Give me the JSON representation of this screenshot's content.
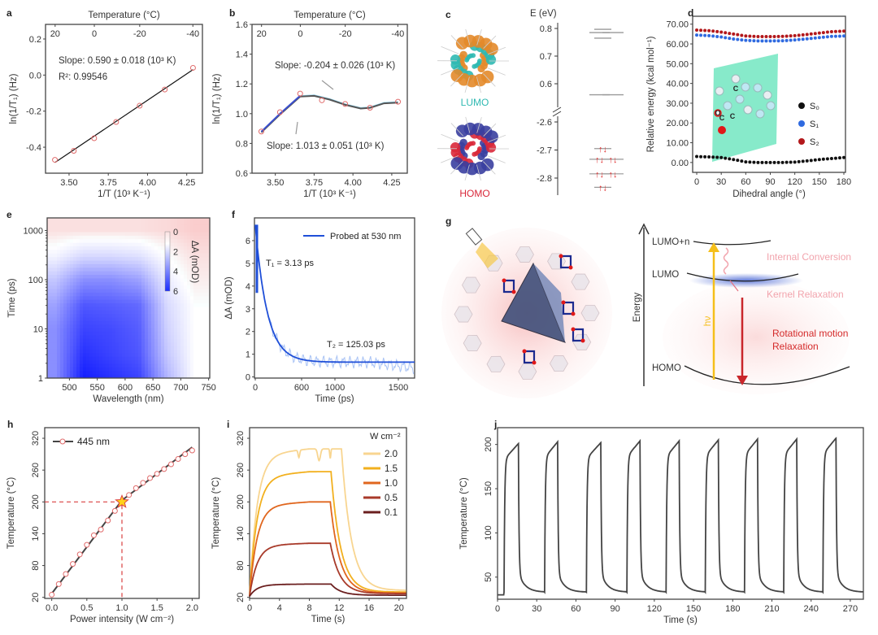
{
  "colors": {
    "red_marker": "#e06a6a",
    "blue_fit": "#1f4fd8",
    "s0": "#111111",
    "s1": "#2f6ae0",
    "s2": "#b3181b",
    "hv": "#f5bf1a",
    "relax": "#c9262b",
    "ic": "#f2a4ad"
  },
  "chart_data": [
    {
      "id": "a",
      "type": "scatter",
      "label": "a",
      "top_axis_label": "Temperature (°C)",
      "top_ticks": [
        "20",
        "0",
        "-20",
        "-40"
      ],
      "xlabel": "1/T (10³ K⁻¹)",
      "ylabel": "ln(1/T₁) (Hz)",
      "xlim": [
        3.35,
        4.35
      ],
      "ylim": [
        -0.544,
        0.281
      ],
      "xticks": [
        "3.50",
        "3.75",
        "4.00",
        "4.25"
      ],
      "yticks": [
        "-0.4",
        "-0.2",
        "0.0",
        "0.2"
      ],
      "x": [
        3.41,
        3.53,
        3.66,
        3.8,
        3.95,
        4.11,
        4.29
      ],
      "y": [
        -0.47,
        -0.42,
        -0.35,
        -0.26,
        -0.17,
        -0.08,
        0.04
      ],
      "fit": {
        "x": [
          3.41,
          4.29
        ],
        "y": [
          -0.485,
          0.03
        ]
      },
      "annotations": [
        "Slope: 0.590 ± 0.018 (10³ K)",
        "R²: 0.99546"
      ]
    },
    {
      "id": "b",
      "type": "scatter",
      "label": "b",
      "top_axis_label": "Temperature (°C)",
      "top_ticks": [
        "20",
        "0",
        "-20",
        "-40"
      ],
      "xlabel": "1/T (10³ K⁻¹)",
      "ylabel": "ln(1/T₁) (Hz)",
      "xlim": [
        3.35,
        4.35
      ],
      "ylim": [
        0.6,
        1.6
      ],
      "xticks": [
        "3.50",
        "3.75",
        "4.00",
        "4.25"
      ],
      "yticks": [
        "0.6",
        "0.8",
        "1.0",
        "1.2",
        "1.4",
        "1.6"
      ],
      "x": [
        3.41,
        3.53,
        3.66,
        3.8,
        3.95,
        4.11,
        4.29
      ],
      "y": [
        0.88,
        1.01,
        1.135,
        1.09,
        1.065,
        1.04,
        1.08
      ],
      "smooth": {
        "x": [
          3.41,
          3.53,
          3.66,
          3.75,
          3.85,
          3.95,
          4.05,
          4.11,
          4.2,
          4.29
        ],
        "y": [
          0.88,
          1.0,
          1.12,
          1.125,
          1.1,
          1.065,
          1.04,
          1.045,
          1.075,
          1.08
        ]
      },
      "annotations": [
        "Slope: -0.204 ± 0.026 (10³ K)",
        "Slope: 1.013 ± 0.051 (10³ K)"
      ]
    },
    {
      "id": "c",
      "type": "diagram",
      "label": "c",
      "axis_label": "E (eV)",
      "upper_ticks": [
        "0.8",
        "0.7",
        "0.6"
      ],
      "lower_ticks": [
        "-2.6",
        "-2.7",
        "-2.8"
      ],
      "lumo_levels": [
        0.797,
        0.785,
        0.785,
        0.765,
        0.56,
        0.56
      ],
      "homo_levels": [
        -2.695,
        -2.733,
        -2.733,
        -2.785,
        -2.785,
        -2.833
      ],
      "orbital_labels": [
        "LUMO",
        "HOMO"
      ],
      "electron_pair": "↑↓"
    },
    {
      "id": "d",
      "type": "scatter",
      "label": "d",
      "xlabel": "Dihedral angle (°)",
      "ylabel": "Relative energy (kcal mol⁻¹)",
      "xlim": [
        -5,
        182
      ],
      "ylim": [
        -5,
        74
      ],
      "xticks": [
        "0",
        "30",
        "60",
        "90",
        "120",
        "150",
        "180"
      ],
      "yticks": [
        "0.00",
        "10.00",
        "20.00",
        "30.00",
        "40.00",
        "50.00",
        "60.00",
        "70.00"
      ],
      "x": [
        0,
        15,
        30,
        45,
        60,
        75,
        90,
        105,
        120,
        135,
        150,
        165,
        180
      ],
      "series": [
        {
          "name": "S₀",
          "color": "#111111",
          "values": [
            3,
            2.8,
            2.5,
            1.5,
            0.3,
            0,
            0,
            0,
            0.2,
            0.8,
            1.5,
            2,
            2.5
          ]
        },
        {
          "name": "S₁",
          "color": "#2f6ae0",
          "values": [
            64.5,
            64.2,
            63.5,
            62.5,
            61.8,
            61.5,
            61.5,
            61.6,
            62,
            62.6,
            63.2,
            63.8,
            64
          ]
        },
        {
          "name": "S₂",
          "color": "#b3181b",
          "values": [
            67,
            66.7,
            66,
            65,
            64,
            63.7,
            63.7,
            63.8,
            64.2,
            64.8,
            65.5,
            66.2,
            66.5
          ]
        }
      ],
      "inset_atoms": [
        "C",
        "C",
        "C",
        "O"
      ],
      "legend": "right"
    },
    {
      "id": "e",
      "type": "heatmap",
      "label": "e",
      "xlabel": "Wavelength (nm)",
      "ylabel": "Time (ps)",
      "xlim": [
        460,
        752
      ],
      "ylim_log": [
        1,
        1800
      ],
      "xticks": [
        "500",
        "550",
        "600",
        "650",
        "700",
        "750"
      ],
      "yticks": [
        "1",
        "10",
        "100",
        "1000"
      ],
      "colorbar_label": "ΔA (mOD)",
      "colorbar_ticks": [
        "0",
        "2",
        "4",
        "6"
      ],
      "grid_wavelengths": [
        475,
        525,
        575,
        625,
        675,
        725
      ],
      "grid_times": [
        1,
        3,
        10,
        30,
        100,
        300,
        1000
      ],
      "z": [
        [
          3,
          6,
          5.5,
          5,
          2,
          0
        ],
        [
          3,
          5.5,
          5,
          4.5,
          1.5,
          0
        ],
        [
          3,
          5,
          4.8,
          4.3,
          1.2,
          0
        ],
        [
          2.5,
          4.5,
          4.3,
          4,
          1,
          0
        ],
        [
          1.5,
          3,
          3,
          2.5,
          0.5,
          -0.3
        ],
        [
          0.3,
          1,
          1,
          0.8,
          0,
          -0.5
        ],
        [
          -0.5,
          -0.5,
          -0.5,
          -0.5,
          -0.6,
          -0.8
        ]
      ]
    },
    {
      "id": "f",
      "type": "line",
      "label": "f",
      "xlabel": "Time (ps)",
      "ylabel": "ΔA (mOD)",
      "xlim": [
        0,
        1750
      ],
      "ylim": [
        -0.05,
        7.0
      ],
      "xticks": [
        "0",
        "600",
        "1000",
        "1500"
      ],
      "yticks": [
        "0",
        "1",
        "2",
        "3",
        "4",
        "5",
        "6"
      ],
      "legend": "Probed at 530 nm",
      "fit": {
        "amplitude": 6.05,
        "tau": 125.03,
        "offset": 0.65
      },
      "annotations": [
        "T₁ = 3.13 ps",
        "T₂ = 125.03 ps"
      ]
    },
    {
      "id": "g",
      "type": "diagram",
      "label": "g",
      "axis_label": "Energy",
      "levels": [
        "LUMO+n",
        "LUMO",
        "HOMO"
      ],
      "excitation": "hν",
      "processes": [
        "Internal Conversion",
        "Kernel Relaxation",
        "Rotational motion",
        "Relaxation"
      ]
    },
    {
      "id": "h",
      "type": "line",
      "label": "h",
      "xlabel": "Power intensity (W cm⁻²)",
      "ylabel": "Temperature (°C)",
      "xlim": [
        -0.1,
        2.1
      ],
      "ylim": [
        18,
        340
      ],
      "xticks": [
        "0.0",
        "0.5",
        "1.0",
        "1.5",
        "2.0"
      ],
      "yticks": [
        "20",
        "80",
        "140",
        "200",
        "260",
        "320"
      ],
      "legend": "445 nm",
      "x": [
        0,
        0.1,
        0.2,
        0.3,
        0.4,
        0.5,
        0.6,
        0.7,
        0.8,
        0.9,
        1.0,
        1.1,
        1.2,
        1.3,
        1.4,
        1.5,
        1.6,
        1.7,
        1.8,
        1.9,
        2.0
      ],
      "y": [
        25,
        45,
        64,
        83,
        101,
        119,
        137,
        148,
        165,
        183,
        200,
        213,
        226,
        236,
        245,
        253,
        262,
        271,
        281,
        290,
        297
      ],
      "fit": {
        "x": [
          0,
          1,
          2
        ],
        "y": [
          27,
          203,
          303
        ]
      },
      "highlight": {
        "x": 1.0,
        "y": 200
      }
    },
    {
      "id": "i",
      "type": "line",
      "label": "i",
      "xlabel": "Time (s)",
      "ylabel": "Temperature (°C)",
      "xlim": [
        0,
        21
      ],
      "ylim": [
        18,
        340
      ],
      "xticks": [
        "0",
        "4",
        "8",
        "12",
        "16",
        "20"
      ],
      "yticks": [
        "20",
        "80",
        "140",
        "200",
        "260",
        "320"
      ],
      "legend_title": "W cm⁻²",
      "series": [
        {
          "name": "2.0",
          "color": "#f8d590",
          "plateau": 300,
          "t_off": 12.3,
          "final": 33
        },
        {
          "name": "1.5",
          "color": "#f2b01e",
          "plateau": 257,
          "t_off": 10.9,
          "final": 30
        },
        {
          "name": "1.0",
          "color": "#e0661e",
          "plateau": 200,
          "t_off": 10.8,
          "final": 28
        },
        {
          "name": "0.5",
          "color": "#a83a2a",
          "plateau": 122,
          "t_off": 10.8,
          "final": 27
        },
        {
          "name": "0.1",
          "color": "#6b1f1f",
          "plateau": 45,
          "t_off": 10.9,
          "final": 24
        }
      ]
    },
    {
      "id": "j",
      "type": "line",
      "label": "j",
      "xlabel": "Time (s)",
      "ylabel": "Temperature (°C)",
      "xlim": [
        0,
        280
      ],
      "ylim": [
        25,
        219
      ],
      "xticks": [
        "0",
        "30",
        "60",
        "90",
        "120",
        "150",
        "180",
        "210",
        "240",
        "270"
      ],
      "yticks": [
        "50",
        "100",
        "150",
        "200"
      ],
      "cycles": {
        "on": [
          5,
          36,
          68,
          99,
          129,
          159,
          189,
          219,
          249
        ],
        "off": [
          16,
          46,
          79,
          109,
          139,
          169,
          199,
          229,
          259
        ],
        "peaks": [
          201,
          203,
          202,
          204,
          204,
          205,
          206,
          206,
          207
        ],
        "baseline": 33
      }
    }
  ]
}
